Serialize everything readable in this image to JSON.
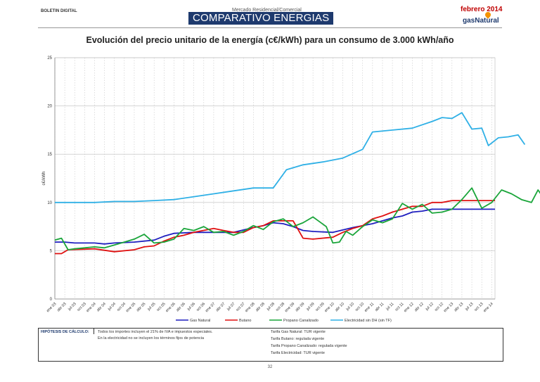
{
  "header": {
    "boletin": "BOLETIN DIGITAL",
    "topic": "Mercado Residencial/Comercial",
    "title": "COMPARATIVO ENERGIAS",
    "date": "febrero 2014",
    "brand": "gasNatural"
  },
  "hypothesis": {
    "label": "HIPÓTESIS DE CÁLCULO:",
    "notes": [
      "Todos los importes incluyen el 21% de IVA e impuestos especiales.",
      "En la electricidad no se incluyen los términos fijos de potencia"
    ],
    "tariffs": [
      "Tarifa Gas Natural: TUR vigente",
      "Tarifa Butano: regulada vigente",
      "Tarifa Propano Canalizado: regulada vigente",
      "Tarifa Electricidad: TUR vigente"
    ]
  },
  "page_number": "32",
  "chart_data": {
    "type": "line",
    "title": "Evolución del precio unitario de la energía (c€/kWh) para un consumo de 3.000 kWh/año",
    "ylabel": "c€/kWh",
    "xlabel": "",
    "ylim": [
      0,
      25
    ],
    "yticks": [
      0,
      5,
      10,
      15,
      20,
      25
    ],
    "grid": true,
    "legend_position": "bottom",
    "x_start_month": "ene 03",
    "x_tick_labels": [
      "ene 03",
      "abr 03",
      "jul 03",
      "oct 03",
      "ene 04",
      "abr 04",
      "jul 04",
      "oct 04",
      "ene 05",
      "abr 05",
      "jul 05",
      "oct 05",
      "ene 06",
      "abr 06",
      "jul 06",
      "oct 06",
      "ene 07",
      "abr 07",
      "jul 07",
      "oct 07",
      "ene 08",
      "abr 08",
      "jul 08",
      "oct 08",
      "ene 09",
      "abr 09",
      "jul 09",
      "oct 09",
      "ene 10",
      "abr 10",
      "jul 10",
      "oct 10",
      "ene 11",
      "abr 11",
      "jul 11",
      "oct 11",
      "ene 12",
      "abr 12",
      "jul 12",
      "oct 12",
      "ene 13",
      "abr 13",
      "jul 13",
      "oct 13",
      "ene 14"
    ],
    "series": [
      {
        "name": "Gas Natural",
        "color": "#1f1fbf",
        "points": [
          [
            0,
            5.9
          ],
          [
            3,
            5.9
          ],
          [
            6,
            5.8
          ],
          [
            12,
            5.8
          ],
          [
            15,
            5.7
          ],
          [
            18,
            5.8
          ],
          [
            24,
            5.9
          ],
          [
            30,
            6.1
          ],
          [
            33,
            6.5
          ],
          [
            36,
            6.8
          ],
          [
            42,
            6.9
          ],
          [
            48,
            6.9
          ],
          [
            54,
            6.9
          ],
          [
            60,
            7.4
          ],
          [
            63,
            7.6
          ],
          [
            66,
            7.9
          ],
          [
            69,
            7.8
          ],
          [
            72,
            7.5
          ],
          [
            75,
            7.1
          ],
          [
            78,
            7.0
          ],
          [
            84,
            6.9
          ],
          [
            90,
            7.4
          ],
          [
            96,
            7.8
          ],
          [
            99,
            8.1
          ],
          [
            102,
            8.4
          ],
          [
            105,
            8.6
          ],
          [
            108,
            9.0
          ],
          [
            111,
            9.1
          ],
          [
            114,
            9.3
          ],
          [
            120,
            9.3
          ],
          [
            126,
            9.3
          ],
          [
            133,
            9.3
          ]
        ]
      },
      {
        "name": "Butano",
        "color": "#e01010",
        "points": [
          [
            0,
            4.7
          ],
          [
            2,
            4.7
          ],
          [
            4,
            5.1
          ],
          [
            12,
            5.2
          ],
          [
            18,
            4.9
          ],
          [
            24,
            5.1
          ],
          [
            27,
            5.4
          ],
          [
            30,
            5.5
          ],
          [
            33,
            6.0
          ],
          [
            36,
            6.4
          ],
          [
            39,
            6.6
          ],
          [
            42,
            6.9
          ],
          [
            48,
            7.3
          ],
          [
            51,
            7.1
          ],
          [
            54,
            6.9
          ],
          [
            57,
            6.9
          ],
          [
            60,
            7.4
          ],
          [
            63,
            7.6
          ],
          [
            66,
            8.1
          ],
          [
            72,
            8.1
          ],
          [
            75,
            6.3
          ],
          [
            78,
            6.2
          ],
          [
            84,
            6.4
          ],
          [
            87,
            6.9
          ],
          [
            90,
            7.3
          ],
          [
            93,
            7.6
          ],
          [
            96,
            8.3
          ],
          [
            99,
            8.6
          ],
          [
            102,
            9.0
          ],
          [
            105,
            9.3
          ],
          [
            108,
            9.6
          ],
          [
            111,
            9.6
          ],
          [
            114,
            10.0
          ],
          [
            117,
            10.0
          ],
          [
            120,
            10.2
          ],
          [
            126,
            10.2
          ],
          [
            133,
            10.2
          ]
        ]
      },
      {
        "name": "Propano Canalizado",
        "color": "#1aa53a",
        "points": [
          [
            0,
            6.1
          ],
          [
            2,
            6.3
          ],
          [
            4,
            5.1
          ],
          [
            6,
            5.2
          ],
          [
            9,
            5.3
          ],
          [
            12,
            5.4
          ],
          [
            15,
            5.3
          ],
          [
            18,
            5.6
          ],
          [
            21,
            5.9
          ],
          [
            24,
            6.2
          ],
          [
            27,
            6.7
          ],
          [
            30,
            5.8
          ],
          [
            33,
            5.9
          ],
          [
            36,
            6.2
          ],
          [
            39,
            7.3
          ],
          [
            42,
            7.1
          ],
          [
            45,
            7.5
          ],
          [
            48,
            6.9
          ],
          [
            51,
            7.0
          ],
          [
            54,
            6.6
          ],
          [
            57,
            7.0
          ],
          [
            60,
            7.6
          ],
          [
            63,
            7.2
          ],
          [
            66,
            8.0
          ],
          [
            69,
            8.3
          ],
          [
            72,
            7.5
          ],
          [
            75,
            7.9
          ],
          [
            78,
            8.5
          ],
          [
            80,
            8.0
          ],
          [
            82,
            7.5
          ],
          [
            84,
            5.8
          ],
          [
            86,
            5.9
          ],
          [
            88,
            7.0
          ],
          [
            90,
            6.6
          ],
          [
            93,
            7.5
          ],
          [
            96,
            8.2
          ],
          [
            99,
            7.9
          ],
          [
            102,
            8.3
          ],
          [
            105,
            9.9
          ],
          [
            108,
            9.3
          ],
          [
            111,
            9.8
          ],
          [
            114,
            8.9
          ],
          [
            117,
            9.0
          ],
          [
            120,
            9.3
          ],
          [
            123,
            10.3
          ],
          [
            126,
            11.5
          ],
          [
            129,
            9.4
          ],
          [
            132,
            10.0
          ],
          [
            135,
            11.3
          ],
          [
            138,
            10.9
          ],
          [
            141,
            10.3
          ],
          [
            144,
            10.0
          ],
          [
            146,
            11.3
          ],
          [
            148,
            10.3
          ]
        ]
      },
      {
        "name": "Electricidad sin DH (sin TF)",
        "color": "#2fb0e6",
        "points": [
          [
            0,
            10.0
          ],
          [
            6,
            10.0
          ],
          [
            12,
            10.0
          ],
          [
            18,
            10.1
          ],
          [
            24,
            10.1
          ],
          [
            30,
            10.2
          ],
          [
            36,
            10.3
          ],
          [
            42,
            10.6
          ],
          [
            48,
            10.9
          ],
          [
            54,
            11.2
          ],
          [
            60,
            11.5
          ],
          [
            66,
            11.5
          ],
          [
            70,
            13.4
          ],
          [
            75,
            13.9
          ],
          [
            81,
            14.2
          ],
          [
            87,
            14.6
          ],
          [
            93,
            15.5
          ],
          [
            96,
            17.3
          ],
          [
            102,
            17.5
          ],
          [
            108,
            17.7
          ],
          [
            114,
            18.4
          ],
          [
            117,
            18.8
          ],
          [
            120,
            18.7
          ],
          [
            123,
            19.3
          ],
          [
            126,
            17.6
          ],
          [
            129,
            17.7
          ],
          [
            131,
            15.9
          ],
          [
            134,
            16.7
          ],
          [
            137,
            16.8
          ],
          [
            140,
            17.0
          ],
          [
            142,
            16.0
          ]
        ]
      }
    ]
  }
}
